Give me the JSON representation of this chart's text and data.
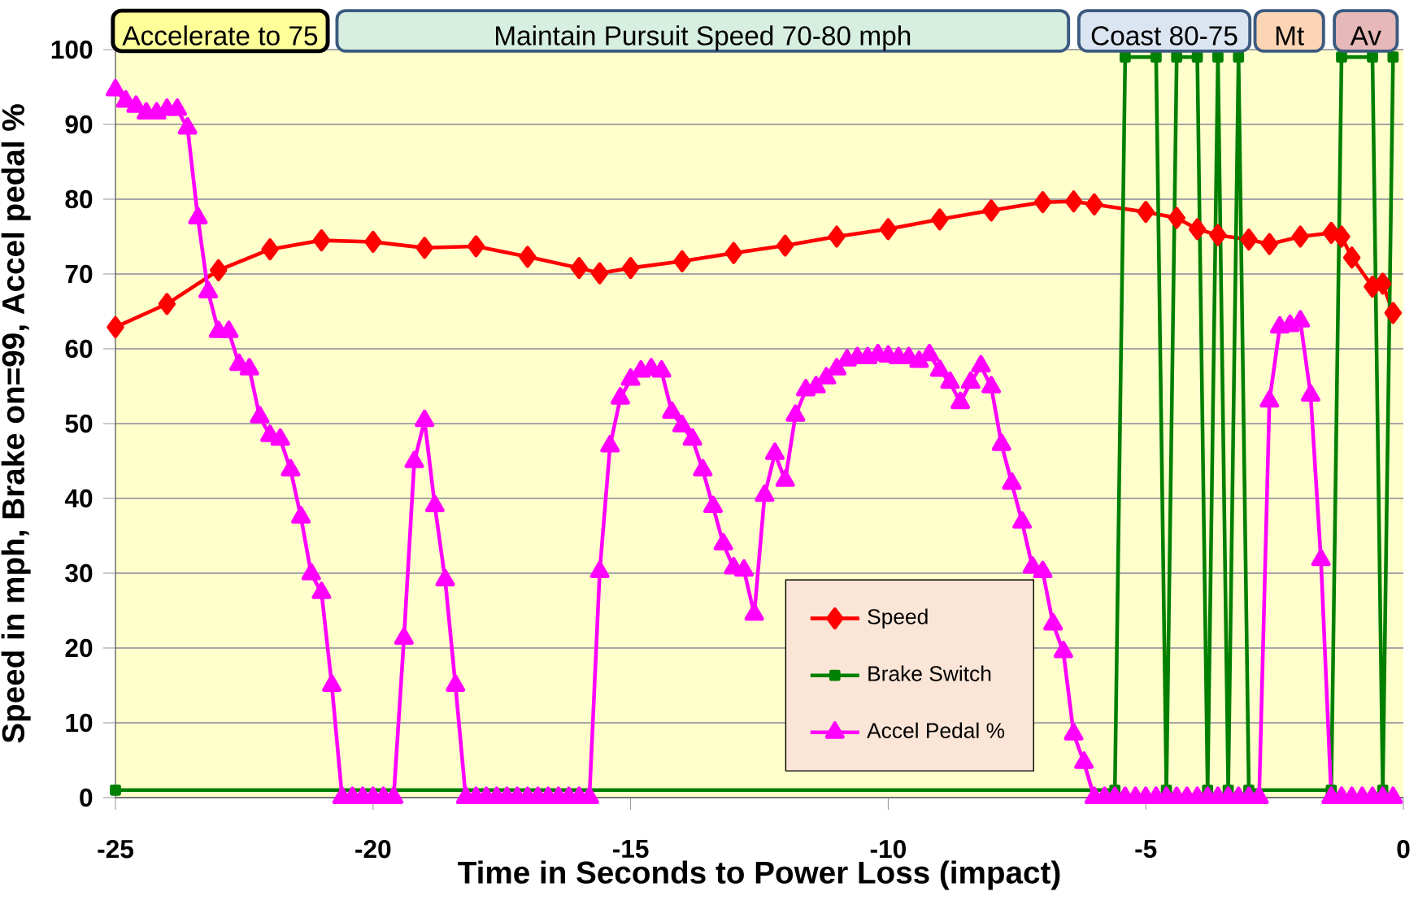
{
  "chart_data": {
    "type": "line",
    "xlabel": "Time in Seconds to Power Loss (impact)",
    "ylabel": "Speed in mph, Brake on=99, Accel pedal %",
    "xlim": [
      -25,
      0
    ],
    "xticks": [
      -25,
      -20,
      -15,
      -10,
      -5,
      0
    ],
    "ylim": [
      0,
      100
    ],
    "yticks": [
      0,
      10,
      20,
      30,
      40,
      50,
      60,
      70,
      80,
      90,
      100
    ],
    "grid": "y",
    "legend": "bottom",
    "annotations": [
      "Accelerate to 75",
      "Maintain Pursuit Speed 70-80 mph",
      "Coast 80-75",
      "Mt",
      "Av"
    ],
    "series": [
      {
        "name": "Speed",
        "color": "#ff0000",
        "marker": "diamond",
        "x": [
          -25,
          -24,
          -23,
          -22,
          -21,
          -20,
          -19,
          -18,
          -17,
          -16,
          -15.6,
          -15,
          -14,
          -13,
          -12,
          -11,
          -10,
          -9,
          -8,
          -7,
          -6.4,
          -6,
          -5,
          -4.4,
          -4,
          -3.6,
          -3,
          -2.6,
          -2,
          -1.4,
          -1.2,
          -1,
          -0.6,
          -0.4,
          -0.2
        ],
        "values": [
          62.9,
          66,
          70.5,
          73.3,
          74.5,
          74.3,
          73.5,
          73.7,
          72.3,
          70.8,
          70.1,
          70.8,
          71.7,
          72.8,
          73.8,
          75,
          76,
          77.3,
          78.5,
          79.6,
          79.7,
          79.3,
          78.3,
          77.5,
          76,
          75.2,
          74.6,
          74,
          75,
          75.5,
          75,
          72.2,
          68.3,
          68.7,
          64.8
        ]
      },
      {
        "name": "Brake Switch",
        "color": "#008000",
        "marker": "square",
        "x": [
          -25,
          -5.6,
          -5.4,
          -4.8,
          -4.6,
          -4.4,
          -4,
          -3.8,
          -3.6,
          -3.4,
          -3.2,
          -3,
          -1.4,
          -1.2,
          -0.6,
          -0.4,
          -0.2
        ],
        "values": [
          1,
          1,
          99,
          99,
          1,
          99,
          99,
          1,
          99,
          1,
          99,
          1,
          1,
          99,
          99,
          1,
          99
        ]
      },
      {
        "name": "Accel Pedal %",
        "color": "#ff00ff",
        "marker": "triangle",
        "x": [
          -25,
          -24.8,
          -24.6,
          -24.4,
          -24.2,
          -24,
          -23.8,
          -23.6,
          -23.4,
          -23.2,
          -23,
          -22.8,
          -22.6,
          -22.4,
          -22.2,
          -22,
          -21.8,
          -21.6,
          -21.4,
          -21.2,
          -21,
          -20.8,
          -20.6,
          -20.4,
          -20.2,
          -20,
          -19.8,
          -19.6,
          -19.4,
          -19.2,
          -19,
          -18.8,
          -18.6,
          -18.4,
          -18.2,
          -18,
          -17.8,
          -17.6,
          -17.4,
          -17.2,
          -17,
          -16.8,
          -16.6,
          -16.4,
          -16.2,
          -16,
          -15.8,
          -15.6,
          -15.4,
          -15.2,
          -15,
          -14.8,
          -14.6,
          -14.4,
          -14.2,
          -14,
          -13.8,
          -13.6,
          -13.4,
          -13.2,
          -13,
          -12.8,
          -12.6,
          -12.4,
          -12.2,
          -12,
          -11.8,
          -11.6,
          -11.4,
          -11.2,
          -11,
          -10.8,
          -10.6,
          -10.4,
          -10.2,
          -10,
          -9.8,
          -9.6,
          -9.4,
          -9.2,
          -9,
          -8.8,
          -8.6,
          -8.4,
          -8.2,
          -8,
          -7.8,
          -7.6,
          -7.4,
          -7.2,
          -7,
          -6.8,
          -6.6,
          -6.4,
          -6.2,
          -6,
          -5.8,
          -5.6,
          -5.4,
          -5.2,
          -5,
          -4.8,
          -4.6,
          -4.4,
          -4.2,
          -4,
          -3.8,
          -3.6,
          -3.4,
          -3.2,
          -3,
          -2.8,
          -2.6,
          -2.4,
          -2.2,
          -2,
          -1.8,
          -1.6,
          -1.4,
          -1.2,
          -1,
          -0.8,
          -0.6,
          -0.4,
          -0.2
        ],
        "values": [
          94.6,
          93.1,
          92.4,
          91.5,
          91.5,
          92,
          92,
          89.5,
          77.5,
          67.6,
          62.3,
          62.3,
          57.9,
          57.3,
          50.9,
          48.4,
          47.9,
          43.8,
          37.5,
          29.9,
          27.4,
          15,
          0,
          0,
          0,
          0,
          0,
          0,
          21.3,
          44.9,
          50.4,
          39,
          29.1,
          15,
          0,
          0,
          0,
          0,
          0,
          0,
          0,
          0,
          0,
          0,
          0,
          0,
          0,
          30.2,
          47,
          53.4,
          55.9,
          57,
          57.3,
          57,
          51.5,
          49.7,
          47.9,
          43.8,
          38.9,
          33.9,
          30.7,
          30.4,
          24.5,
          40.4,
          46,
          42.4,
          51.1,
          54.5,
          54.9,
          56.1,
          57.3,
          58.5,
          58.8,
          58.8,
          59.2,
          59,
          58.8,
          58.8,
          58.3,
          59.2,
          57.1,
          55.5,
          52.8,
          55.5,
          57.7,
          54.9,
          47.2,
          42,
          36.8,
          30.8,
          30.2,
          23.2,
          19.5,
          8.5,
          4.7,
          0,
          0,
          0,
          0,
          0,
          0,
          0,
          0,
          0,
          0,
          0,
          0,
          0,
          0,
          0,
          0,
          0,
          53,
          62.9,
          63.1,
          63.7,
          53.8,
          31.8,
          0,
          0,
          0,
          0,
          0,
          0,
          0
        ]
      }
    ]
  }
}
